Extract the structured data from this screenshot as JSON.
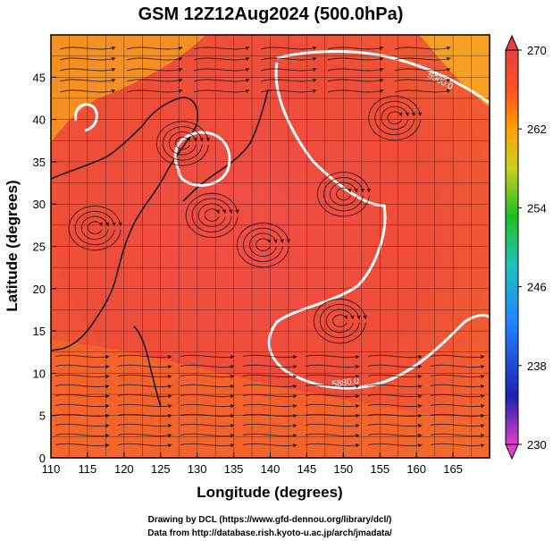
{
  "chart_data": {
    "type": "heatmap",
    "title": "GSM 12Z12Aug2024 (500.0hPa)",
    "xlabel": "Longitude (degrees)",
    "ylabel": "Latitude  (degrees)",
    "xlim": [
      110,
      170
    ],
    "ylim": [
      0,
      50
    ],
    "x_ticks": [
      110,
      115,
      120,
      125,
      130,
      135,
      140,
      145,
      150,
      155,
      160,
      165
    ],
    "y_ticks": [
      0,
      5,
      10,
      15,
      20,
      25,
      30,
      35,
      40,
      45
    ],
    "grid": true,
    "colorbar": {
      "range": [
        230,
        270
      ],
      "ticks": [
        230,
        238,
        246,
        254,
        262,
        270
      ],
      "stops": [
        "#e040c8",
        "#2020b0",
        "#2080ff",
        "#20c0c0",
        "#20c020",
        "#c8d020",
        "#ffa000",
        "#ff5020",
        "#e84040"
      ]
    },
    "contours": [
      {
        "value": "5900.0",
        "label": "5900.0"
      },
      {
        "value": "5880.0",
        "label": "5880.0"
      }
    ],
    "field_description": "temperature shading with streamlines and 500hPa geopotential height contours"
  },
  "credits": {
    "line1": "Drawing by DCL (https://www.gfd-dennou.org/library/dcl/)",
    "line2": "Data from http://database.rish.kyoto-u.ac.jp/arch/jmadata/"
  }
}
